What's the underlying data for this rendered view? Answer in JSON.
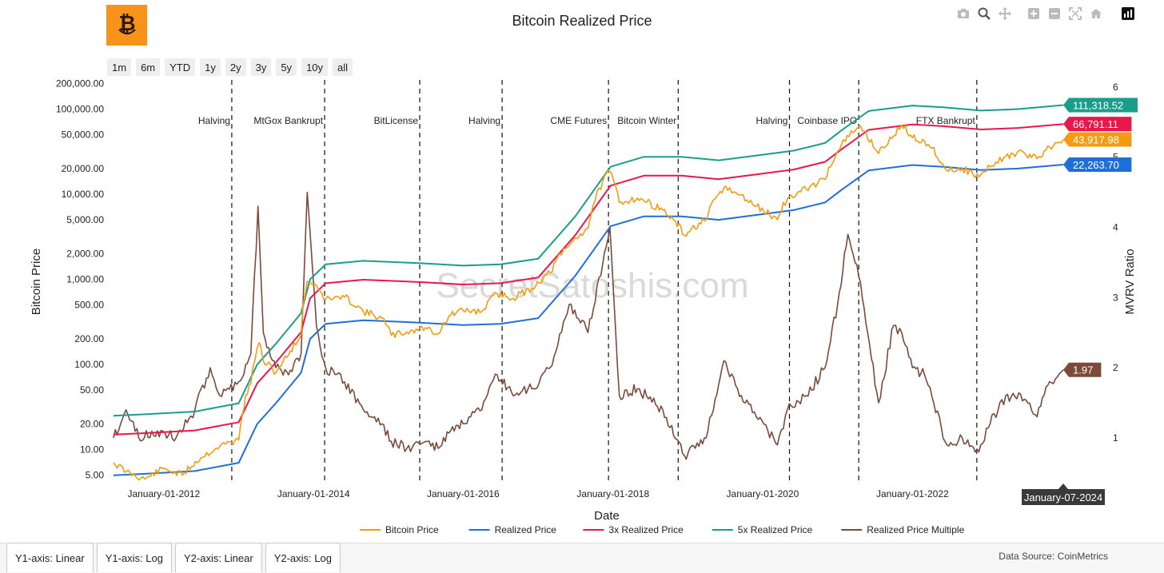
{
  "logo": {
    "icon": "bitcoin-smile-icon",
    "color": "#f7931a"
  },
  "modebar": [
    {
      "name": "camera-icon"
    },
    {
      "name": "zoom-icon"
    },
    {
      "name": "pan-icon"
    },
    {
      "name": "zoom-in-icon"
    },
    {
      "name": "zoom-out-icon"
    },
    {
      "name": "autoscale-icon"
    },
    {
      "name": "reset-axes-icon"
    },
    {
      "name": "plotly-logo-icon"
    }
  ],
  "range_buttons": [
    "1m",
    "6m",
    "YTD",
    "1y",
    "2y",
    "3y",
    "5y",
    "10y",
    "all"
  ],
  "axis_tabs": [
    "Y1-axis: Linear",
    "Y1-axis: Log",
    "Y2-axis: Linear",
    "Y2-axis: Log"
  ],
  "source": "Data Source: CoinMetrics",
  "watermark": "SecretSatoshis.com",
  "chart_data": {
    "type": "line",
    "title": "Bitcoin Realized Price",
    "xlabel": "Date",
    "ylabel": "Bitcoin Price",
    "y2label": "MVRV Ratio",
    "x_range": [
      "2011-05-01",
      "2024-02-15"
    ],
    "x_ticks": [
      {
        "date": "2012-01-01",
        "label": "January-01-2012"
      },
      {
        "date": "2014-01-01",
        "label": "January-01-2014"
      },
      {
        "date": "2016-01-01",
        "label": "January-01-2016"
      },
      {
        "date": "2018-01-01",
        "label": "January-01-2018"
      },
      {
        "date": "2020-01-01",
        "label": "January-01-2020"
      },
      {
        "date": "2022-01-01",
        "label": "January-01-2022"
      }
    ],
    "y_scale": "log",
    "y_range": [
      4,
      220000
    ],
    "y_ticks": [
      {
        "v": 5,
        "label": "5.00"
      },
      {
        "v": 10,
        "label": "10.00"
      },
      {
        "v": 20,
        "label": "20.00"
      },
      {
        "v": 50,
        "label": "50.00"
      },
      {
        "v": 100,
        "label": "100.00"
      },
      {
        "v": 200,
        "label": "200.00"
      },
      {
        "v": 500,
        "label": "500.00"
      },
      {
        "v": 1000,
        "label": "1,000.00"
      },
      {
        "v": 2000,
        "label": "2,000.00"
      },
      {
        "v": 5000,
        "label": "5,000.00"
      },
      {
        "v": 10000,
        "label": "10,000.00"
      },
      {
        "v": 20000,
        "label": "20,000.00"
      },
      {
        "v": 50000,
        "label": "50,000.00"
      },
      {
        "v": 100000,
        "label": "100,000.00"
      },
      {
        "v": 200000,
        "label": "200,000.00"
      }
    ],
    "y2_scale": "linear",
    "y2_range": [
      0.35,
      6.1
    ],
    "y2_ticks": [
      1,
      2,
      3,
      4,
      5,
      6
    ],
    "events": [
      {
        "date": "2012-11-28",
        "label": "Halving"
      },
      {
        "date": "2014-02-24",
        "label": "MtGox Bankrupt"
      },
      {
        "date": "2015-06-03",
        "label": "BitLicense"
      },
      {
        "date": "2016-07-09",
        "label": "Halving"
      },
      {
        "date": "2017-12-10",
        "label": "CME Futures"
      },
      {
        "date": "2018-11-15",
        "label": "Bitcoin Winter"
      },
      {
        "date": "2020-05-11",
        "label": "Halving"
      },
      {
        "date": "2021-04-14",
        "label": "Coinbase IPO"
      },
      {
        "date": "2022-11-11",
        "label": "FTX Bankrupt"
      }
    ],
    "series": [
      {
        "name": "Bitcoin Price",
        "color": "#f39c12",
        "axis": "y1",
        "points": [
          [
            "2011-05-01",
            7
          ],
          [
            "2011-07-01",
            5.5
          ],
          [
            "2011-10-01",
            4.5
          ],
          [
            "2012-01-01",
            6
          ],
          [
            "2012-04-01",
            5
          ],
          [
            "2012-07-01",
            8
          ],
          [
            "2012-10-01",
            11
          ],
          [
            "2013-01-01",
            13
          ],
          [
            "2013-03-01",
            60
          ],
          [
            "2013-04-10",
            180
          ],
          [
            "2013-05-01",
            110
          ],
          [
            "2013-07-01",
            80
          ],
          [
            "2013-09-01",
            130
          ],
          [
            "2013-11-01",
            220
          ],
          [
            "2013-12-01",
            950
          ],
          [
            "2014-01-15",
            850
          ],
          [
            "2014-03-01",
            580
          ],
          [
            "2014-06-01",
            620
          ],
          [
            "2014-09-01",
            420
          ],
          [
            "2014-12-01",
            350
          ],
          [
            "2015-01-15",
            220
          ],
          [
            "2015-04-01",
            240
          ],
          [
            "2015-07-01",
            270
          ],
          [
            "2015-09-01",
            230
          ],
          [
            "2015-11-01",
            380
          ],
          [
            "2016-01-01",
            430
          ],
          [
            "2016-04-01",
            420
          ],
          [
            "2016-06-15",
            680
          ],
          [
            "2016-09-01",
            600
          ],
          [
            "2016-12-01",
            780
          ],
          [
            "2017-03-01",
            1200
          ],
          [
            "2017-06-01",
            2500
          ],
          [
            "2017-09-01",
            4000
          ],
          [
            "2017-12-17",
            18500
          ],
          [
            "2018-02-01",
            8000
          ],
          [
            "2018-05-01",
            9000
          ],
          [
            "2018-09-01",
            6500
          ],
          [
            "2018-12-15",
            3300
          ],
          [
            "2019-04-01",
            5000
          ],
          [
            "2019-06-26",
            12000
          ],
          [
            "2019-09-01",
            10000
          ],
          [
            "2019-12-01",
            7200
          ],
          [
            "2020-03-13",
            5000
          ],
          [
            "2020-05-01",
            8800
          ],
          [
            "2020-08-01",
            11500
          ],
          [
            "2020-11-01",
            15000
          ],
          [
            "2021-01-01",
            32000
          ],
          [
            "2021-04-14",
            62000
          ],
          [
            "2021-07-20",
            30000
          ],
          [
            "2021-10-01",
            48000
          ],
          [
            "2021-11-10",
            65000
          ],
          [
            "2022-01-01",
            46000
          ],
          [
            "2022-03-01",
            42000
          ],
          [
            "2022-06-18",
            19000
          ],
          [
            "2022-09-01",
            20000
          ],
          [
            "2022-11-21",
            16000
          ],
          [
            "2023-01-15",
            21000
          ],
          [
            "2023-04-01",
            28000
          ],
          [
            "2023-07-01",
            30500
          ],
          [
            "2023-09-01",
            26000
          ],
          [
            "2023-11-01",
            36000
          ],
          [
            "2024-01-07",
            43917.98
          ]
        ]
      },
      {
        "name": "Realized Price",
        "color": "#1f6fd9",
        "axis": "y1",
        "points": [
          [
            "2011-05-01",
            5
          ],
          [
            "2011-10-01",
            5.2
          ],
          [
            "2012-06-01",
            5.6
          ],
          [
            "2013-01-01",
            7
          ],
          [
            "2013-04-01",
            20
          ],
          [
            "2013-07-01",
            35
          ],
          [
            "2013-11-01",
            80
          ],
          [
            "2013-12-15",
            200
          ],
          [
            "2014-03-01",
            300
          ],
          [
            "2014-09-01",
            330
          ],
          [
            "2015-06-01",
            310
          ],
          [
            "2016-01-01",
            290
          ],
          [
            "2016-07-01",
            300
          ],
          [
            "2017-01-01",
            350
          ],
          [
            "2017-07-01",
            1100
          ],
          [
            "2017-12-20",
            4200
          ],
          [
            "2018-06-01",
            5500
          ],
          [
            "2018-12-01",
            5500
          ],
          [
            "2019-06-01",
            5000
          ],
          [
            "2019-12-01",
            5700
          ],
          [
            "2020-06-01",
            6500
          ],
          [
            "2020-11-01",
            8000
          ],
          [
            "2021-01-15",
            11000
          ],
          [
            "2021-06-01",
            19000
          ],
          [
            "2022-01-01",
            22000
          ],
          [
            "2022-06-01",
            21000
          ],
          [
            "2022-12-01",
            19200
          ],
          [
            "2023-06-01",
            20000
          ],
          [
            "2024-01-07",
            22263.7
          ]
        ]
      },
      {
        "name": "3x Realized Price",
        "color": "#e8184d",
        "axis": "y1",
        "points": [
          [
            "2011-05-01",
            15
          ],
          [
            "2011-10-01",
            15.6
          ],
          [
            "2012-06-01",
            16.8
          ],
          [
            "2013-01-01",
            21
          ],
          [
            "2013-04-01",
            60
          ],
          [
            "2013-07-01",
            105
          ],
          [
            "2013-11-01",
            240
          ],
          [
            "2013-12-15",
            600
          ],
          [
            "2014-03-01",
            900
          ],
          [
            "2014-09-01",
            990
          ],
          [
            "2015-06-01",
            930
          ],
          [
            "2016-01-01",
            870
          ],
          [
            "2016-07-01",
            900
          ],
          [
            "2017-01-01",
            1050
          ],
          [
            "2017-07-01",
            3300
          ],
          [
            "2017-12-20",
            12600
          ],
          [
            "2018-06-01",
            16500
          ],
          [
            "2018-12-01",
            16500
          ],
          [
            "2019-06-01",
            15000
          ],
          [
            "2019-12-01",
            17100
          ],
          [
            "2020-06-01",
            19500
          ],
          [
            "2020-11-01",
            24000
          ],
          [
            "2021-01-15",
            33000
          ],
          [
            "2021-06-01",
            57000
          ],
          [
            "2022-01-01",
            66000
          ],
          [
            "2022-06-01",
            63000
          ],
          [
            "2022-12-01",
            57600
          ],
          [
            "2023-06-01",
            60000
          ],
          [
            "2024-01-07",
            66791.11
          ]
        ]
      },
      {
        "name": "5x Realized Price",
        "color": "#1a9e8c",
        "axis": "y1",
        "points": [
          [
            "2011-05-01",
            25
          ],
          [
            "2011-10-01",
            26
          ],
          [
            "2012-06-01",
            28
          ],
          [
            "2013-01-01",
            35
          ],
          [
            "2013-04-01",
            100
          ],
          [
            "2013-07-01",
            175
          ],
          [
            "2013-11-01",
            400
          ],
          [
            "2013-12-15",
            1000
          ],
          [
            "2014-03-01",
            1500
          ],
          [
            "2014-09-01",
            1650
          ],
          [
            "2015-06-01",
            1550
          ],
          [
            "2016-01-01",
            1450
          ],
          [
            "2016-07-01",
            1500
          ],
          [
            "2017-01-01",
            1750
          ],
          [
            "2017-07-01",
            5500
          ],
          [
            "2017-12-20",
            21000
          ],
          [
            "2018-06-01",
            27500
          ],
          [
            "2018-12-01",
            27500
          ],
          [
            "2019-06-01",
            25000
          ],
          [
            "2019-12-01",
            28500
          ],
          [
            "2020-06-01",
            32500
          ],
          [
            "2020-11-01",
            40000
          ],
          [
            "2021-01-15",
            55000
          ],
          [
            "2021-06-01",
            95000
          ],
          [
            "2022-01-01",
            110000
          ],
          [
            "2022-06-01",
            105000
          ],
          [
            "2022-12-01",
            96000
          ],
          [
            "2023-06-01",
            100000
          ],
          [
            "2024-01-07",
            111318.52
          ]
        ]
      },
      {
        "name": "Realized Price Multiple",
        "color": "#7b4a3a",
        "axis": "y2",
        "points": [
          [
            "2011-05-01",
            1.0
          ],
          [
            "2011-07-01",
            1.4
          ],
          [
            "2011-09-01",
            1.0
          ],
          [
            "2011-12-01",
            1.1
          ],
          [
            "2012-03-01",
            1.0
          ],
          [
            "2012-06-01",
            1.4
          ],
          [
            "2012-08-15",
            2.0
          ],
          [
            "2012-10-01",
            1.6
          ],
          [
            "2013-01-01",
            1.8
          ],
          [
            "2013-03-01",
            2.2
          ],
          [
            "2013-04-05",
            4.3
          ],
          [
            "2013-05-01",
            2.5
          ],
          [
            "2013-07-01",
            2.0
          ],
          [
            "2013-09-01",
            1.9
          ],
          [
            "2013-11-01",
            2.2
          ],
          [
            "2013-12-01",
            4.5
          ],
          [
            "2014-01-15",
            2.6
          ],
          [
            "2014-03-01",
            2.0
          ],
          [
            "2014-06-01",
            1.8
          ],
          [
            "2014-09-01",
            1.4
          ],
          [
            "2014-12-01",
            1.2
          ],
          [
            "2015-01-15",
            0.95
          ],
          [
            "2015-04-01",
            0.85
          ],
          [
            "2015-07-01",
            0.95
          ],
          [
            "2015-09-01",
            0.85
          ],
          [
            "2015-11-01",
            1.1
          ],
          [
            "2016-01-01",
            1.2
          ],
          [
            "2016-04-01",
            1.4
          ],
          [
            "2016-06-15",
            1.9
          ],
          [
            "2016-09-01",
            1.6
          ],
          [
            "2016-12-01",
            1.7
          ],
          [
            "2017-03-01",
            2.0
          ],
          [
            "2017-06-01",
            2.9
          ],
          [
            "2017-09-01",
            2.5
          ],
          [
            "2017-12-17",
            4.0
          ],
          [
            "2018-02-01",
            1.6
          ],
          [
            "2018-05-01",
            1.7
          ],
          [
            "2018-09-01",
            1.4
          ],
          [
            "2018-12-15",
            0.75
          ],
          [
            "2019-04-01",
            1.0
          ],
          [
            "2019-06-26",
            2.1
          ],
          [
            "2019-09-01",
            1.7
          ],
          [
            "2019-12-01",
            1.3
          ],
          [
            "2020-03-13",
            0.9
          ],
          [
            "2020-05-01",
            1.4
          ],
          [
            "2020-08-01",
            1.6
          ],
          [
            "2020-11-01",
            2.0
          ],
          [
            "2021-01-01",
            2.9
          ],
          [
            "2021-02-20",
            3.9
          ],
          [
            "2021-04-14",
            3.3
          ],
          [
            "2021-07-20",
            1.5
          ],
          [
            "2021-10-01",
            2.6
          ],
          [
            "2021-11-10",
            2.5
          ],
          [
            "2022-01-01",
            2.0
          ],
          [
            "2022-03-01",
            1.9
          ],
          [
            "2022-06-18",
            0.9
          ],
          [
            "2022-09-01",
            1.0
          ],
          [
            "2022-11-21",
            0.8
          ],
          [
            "2023-01-15",
            1.2
          ],
          [
            "2023-04-01",
            1.6
          ],
          [
            "2023-07-01",
            1.55
          ],
          [
            "2023-09-01",
            1.3
          ],
          [
            "2023-11-01",
            1.8
          ],
          [
            "2024-01-07",
            1.97
          ]
        ]
      }
    ],
    "last_values": [
      {
        "series": "5x Realized Price",
        "label": "111,318.52",
        "color": "#1a9e8c"
      },
      {
        "series": "3x Realized Price",
        "label": "66,791.11",
        "color": "#e8184d"
      },
      {
        "series": "Bitcoin Price",
        "label": "43,917.98",
        "color": "#f39c12"
      },
      {
        "series": "Realized Price",
        "label": "22,263.70",
        "color": "#1f6fd9"
      },
      {
        "series": "Realized Price Multiple",
        "label": "1.97",
        "color": "#7b4a3a"
      }
    ],
    "hover_date": "January-07-2024",
    "legend_position": "bottom-center"
  }
}
